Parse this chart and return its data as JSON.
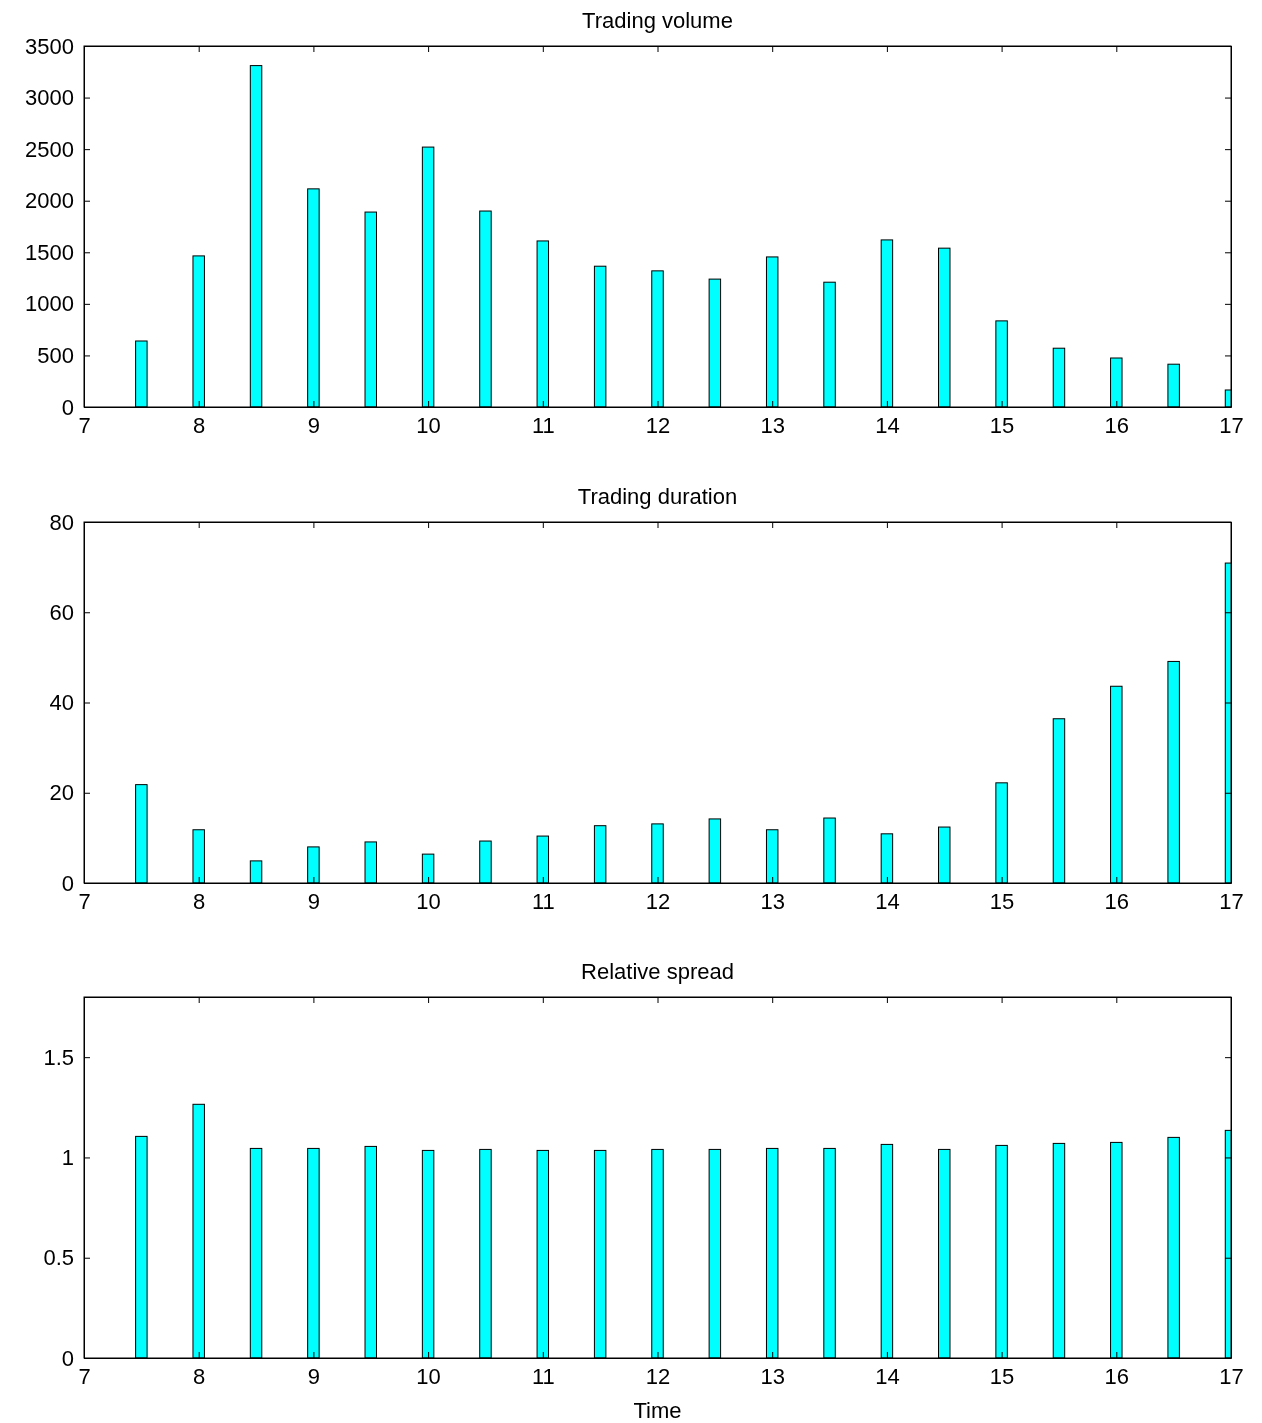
{
  "chart_data": [
    {
      "type": "bar",
      "title": "Trading volume",
      "x": [
        7.5,
        8,
        8.5,
        9,
        9.5,
        10,
        10.5,
        11,
        11.5,
        12,
        12.5,
        13,
        13.5,
        14,
        14.5,
        15,
        15.5,
        16,
        16.5,
        17
      ],
      "values": [
        640,
        1465,
        3310,
        2115,
        1890,
        2520,
        1900,
        1610,
        1365,
        1320,
        1240,
        1455,
        1210,
        1620,
        1540,
        835,
        570,
        475,
        415,
        165
      ],
      "color": "#00ffff",
      "xlim": [
        7,
        17
      ],
      "xticks": [
        7,
        8,
        9,
        10,
        11,
        12,
        13,
        14,
        15,
        16,
        17
      ],
      "ylim": [
        0,
        3500
      ],
      "yticks": [
        0,
        500,
        1000,
        1500,
        2000,
        2500,
        3000,
        3500
      ]
    },
    {
      "type": "bar",
      "title": "Trading duration",
      "x": [
        7.5,
        8,
        8.5,
        9,
        9.5,
        10,
        10.5,
        11,
        11.5,
        12,
        12.5,
        13,
        13.5,
        14,
        14.5,
        15,
        15.5,
        16,
        16.5,
        17
      ],
      "values": [
        21.8,
        11.8,
        4.9,
        8,
        9.1,
        6.4,
        9.3,
        10.4,
        12.7,
        13.1,
        14.2,
        11.8,
        14.4,
        10.9,
        12.4,
        22.2,
        36.4,
        43.6,
        49.1,
        70.9
      ],
      "color": "#00ffff",
      "xlim": [
        7,
        17
      ],
      "xticks": [
        7,
        8,
        9,
        10,
        11,
        12,
        13,
        14,
        15,
        16,
        17
      ],
      "ylim": [
        0,
        80
      ],
      "yticks": [
        0,
        20,
        40,
        60,
        80
      ]
    },
    {
      "type": "bar",
      "title": "Relative spread",
      "xlabel": "Time",
      "x": [
        7.5,
        8,
        8.5,
        9,
        9.5,
        10,
        10.5,
        11,
        11.5,
        12,
        12.5,
        13,
        13.5,
        14,
        14.5,
        15,
        15.5,
        16,
        16.5,
        17
      ],
      "values": [
        1.105,
        1.265,
        1.045,
        1.045,
        1.055,
        1.035,
        1.04,
        1.035,
        1.035,
        1.04,
        1.04,
        1.045,
        1.045,
        1.065,
        1.04,
        1.06,
        1.07,
        1.075,
        1.1,
        1.135
      ],
      "color": "#00ffff",
      "xlim": [
        7,
        17
      ],
      "xticks": [
        7,
        8,
        9,
        10,
        11,
        12,
        13,
        14,
        15,
        16,
        17
      ],
      "ylim": [
        0,
        1.8
      ],
      "yticks": [
        0,
        0.5,
        1,
        1.5
      ]
    }
  ]
}
